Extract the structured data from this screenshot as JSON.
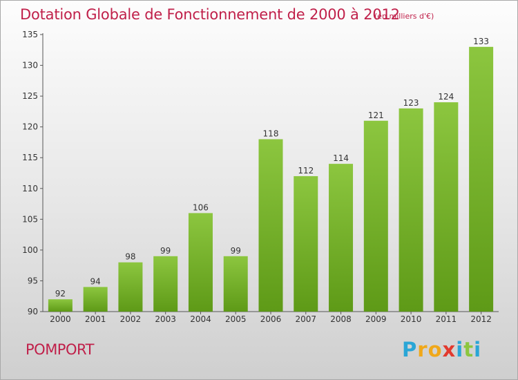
{
  "chart_data": {
    "type": "bar",
    "title": "Dotation Globale de Fonctionnement de 2000 à 2012",
    "subtitle": "(en milliers d'€)",
    "categories": [
      "2000",
      "2001",
      "2002",
      "2003",
      "2004",
      "2005",
      "2006",
      "2007",
      "2008",
      "2009",
      "2010",
      "2011",
      "2012"
    ],
    "values": [
      92,
      94,
      98,
      99,
      106,
      99,
      118,
      112,
      114,
      121,
      123,
      124,
      133
    ],
    "ylim": [
      90,
      135
    ],
    "yticks": [
      90,
      95,
      100,
      105,
      110,
      115,
      120,
      125,
      130,
      135
    ],
    "xlabel": "",
    "ylabel": "",
    "grid": false,
    "bar_color": "#8cc63f",
    "bar_color_dark": "#5e9a17"
  },
  "commune": "POMPORT",
  "brand": {
    "letters": [
      "P",
      "r",
      "o",
      "x",
      "i",
      "t",
      "i"
    ],
    "colors": [
      "#2aa6d6",
      "#f0a81a",
      "#f0a81a",
      "#e23a2e",
      "#2aa6d6",
      "#8cc63f",
      "#2aa6d6"
    ]
  }
}
